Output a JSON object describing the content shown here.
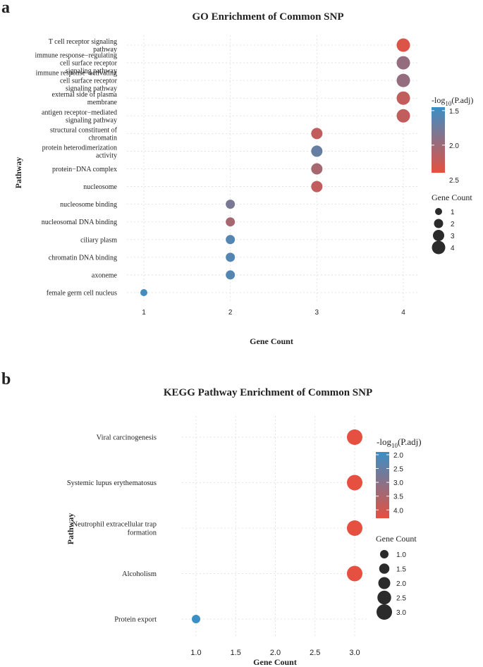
{
  "figure": {
    "panel_a_letter": "a",
    "panel_b_letter": "b"
  },
  "chart_data": [
    {
      "type": "scatter",
      "title": "GO Enrichment of Common SNP",
      "xlabel": "Gene Count",
      "ylabel": "Pathway",
      "xlim": [
        1,
        4
      ],
      "xticks": [
        "1",
        "2",
        "3",
        "4"
      ],
      "grid": true,
      "categories": [
        [
          "T cell receptor signaling",
          "pathway"
        ],
        [
          "immune response−regulating",
          "cell surface receptor",
          "signaling pathway"
        ],
        [
          "immune response−activating",
          "cell surface receptor",
          "signaling pathway"
        ],
        [
          "external side of plasma",
          "membrane"
        ],
        [
          "antigen receptor−mediated",
          "signaling pathway"
        ],
        [
          "structural constituent of",
          "chromatin"
        ],
        [
          "protein heterodimerization",
          "activity"
        ],
        [
          "protein−DNA complex"
        ],
        [
          "nucleosome"
        ],
        [
          "nucleosome binding"
        ],
        [
          "nucleosomal DNA binding"
        ],
        [
          "ciliary plasm"
        ],
        [
          "chromatin DNA binding"
        ],
        [
          "axoneme"
        ],
        [
          "female germ cell nucleus"
        ]
      ],
      "gene_count": [
        4,
        4,
        4,
        4,
        4,
        3,
        3,
        3,
        3,
        2,
        2,
        2,
        2,
        2,
        1
      ],
      "neg_log10_padj": [
        2.35,
        1.95,
        1.95,
        2.2,
        2.2,
        2.2,
        1.7,
        2.05,
        2.2,
        1.8,
        2.05,
        1.6,
        1.6,
        1.6,
        1.5
      ],
      "color_legend": {
        "title_prefix": "-log",
        "title_sub": "10",
        "title_suffix": "(P.adj)",
        "range": [
          1.45,
          2.4
        ],
        "ticks": [
          1.5,
          2.0,
          2.5
        ],
        "tick_labels": [
          "1.5",
          "2.0",
          "2.5"
        ],
        "low_color": "#3a8fc6",
        "high_color": "#e55040"
      },
      "size_legend": {
        "title": "Gene Count",
        "values": [
          1,
          2,
          3,
          4
        ],
        "labels": [
          "1",
          "2",
          "3",
          "4"
        ]
      }
    },
    {
      "type": "scatter",
      "title": "KEGG Pathway Enrichment of Common SNP",
      "xlabel": "Gene Count",
      "ylabel": "Pathway",
      "xlim": [
        1,
        3
      ],
      "xticks": [
        "1.0",
        "1.5",
        "2.0",
        "2.5",
        "3.0"
      ],
      "grid": true,
      "categories": [
        [
          "Viral carcinogenesis"
        ],
        [
          "Systemic lupus erythematosus"
        ],
        [
          "Neutrophil extracellular trap",
          "formation"
        ],
        [
          "Alcoholism"
        ],
        [
          "Protein export"
        ]
      ],
      "gene_count": [
        3,
        3,
        3,
        3,
        1
      ],
      "neg_log10_padj": [
        4.3,
        4.3,
        4.3,
        4.3,
        1.9
      ],
      "color_legend": {
        "title_prefix": "-log",
        "title_sub": "10",
        "title_suffix": "(P.adj)",
        "range": [
          1.9,
          4.3
        ],
        "ticks": [
          2.0,
          2.5,
          3.0,
          3.5,
          4.0
        ],
        "tick_labels": [
          "2.0",
          "2.5",
          "3.0",
          "3.5",
          "4.0"
        ],
        "low_color": "#3a8fc6",
        "high_color": "#e55040"
      },
      "size_legend": {
        "title": "Gene Count",
        "values": [
          1.0,
          1.5,
          2.0,
          2.5,
          3.0
        ],
        "labels": [
          "1.0",
          "1.5",
          "2.0",
          "2.5",
          "3.0"
        ]
      }
    }
  ]
}
